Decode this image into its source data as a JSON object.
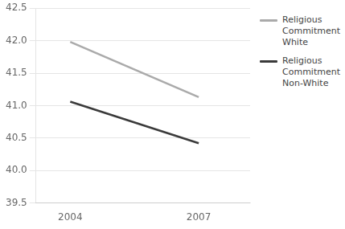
{
  "chart_data": {
    "type": "line",
    "x": [
      2004,
      2007
    ],
    "series": [
      {
        "name": "Religious\nCommitment\nWhite",
        "color": "#aaaaaa",
        "values": [
          41.98,
          41.13
        ]
      },
      {
        "name": "Religious\nCommitment\nNon-White",
        "color": "#3a3a3a",
        "values": [
          41.06,
          40.42
        ]
      }
    ],
    "xlim": [
      2003.2,
      2008.2
    ],
    "xticks": [
      2004,
      2007
    ],
    "ylim": [
      39.5,
      42.5
    ],
    "yticks": [
      39.5,
      {
        "value": 40.0,
        "label": "40.0"
      },
      40.5,
      {
        "value": 41.0,
        "label": "41.0"
      },
      41.5,
      {
        "value": 42.0,
        "label": "42.0"
      },
      42.5
    ],
    "grid": "y",
    "legend": "right"
  }
}
